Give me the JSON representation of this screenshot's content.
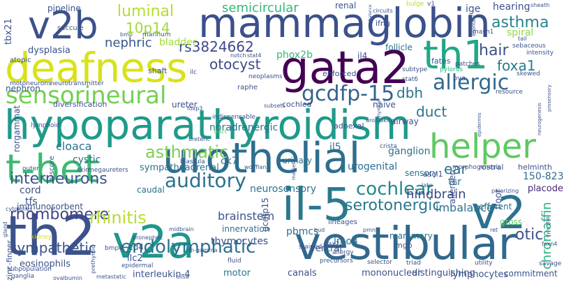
{
  "words": [
    {
      "text": "hypoparathyroidism",
      "color": "#1e9a8a"
    },
    {
      "text": "mammaglobin",
      "color": "#3b518b"
    },
    {
      "text": "deafness",
      "color": "#d8e219"
    },
    {
      "text": "urothelial",
      "color": "#2e6e8e"
    },
    {
      "text": "gata2",
      "color": "#440154"
    },
    {
      "text": "vestibular",
      "color": "#31688e"
    },
    {
      "text": "t-bet",
      "color": "#3cbb75"
    },
    {
      "text": "th2",
      "color": "#3b528b"
    },
    {
      "text": "v2a",
      "color": "#1f968b"
    },
    {
      "text": "v2b",
      "color": "#3b518b"
    },
    {
      "text": "th1",
      "color": "#22a884"
    },
    {
      "text": "il-5",
      "color": "#2a788e"
    },
    {
      "text": "v2",
      "color": "#2c728e"
    },
    {
      "text": "helper",
      "color": "#5ec962"
    },
    {
      "text": "sensorineural",
      "color": "#73d055"
    },
    {
      "text": "gcdfp-15",
      "color": "#33638d"
    },
    {
      "text": "allergic",
      "color": "#31688e"
    },
    {
      "text": "auditory",
      "color": "#2c728e"
    },
    {
      "text": "endolymphatic",
      "color": "#2d708e"
    },
    {
      "text": "cochlear",
      "color": "#24868e"
    },
    {
      "text": "serotonergic",
      "color": "#2a788e"
    },
    {
      "text": "asthmatic",
      "color": "#7ad151"
    },
    {
      "text": "interneurons",
      "color": "#3b528b"
    },
    {
      "text": "rhombomere",
      "color": "#414487"
    },
    {
      "text": "rhinitis",
      "color": "#b5de2b"
    },
    {
      "text": "sympathetic",
      "color": "#3b528b"
    },
    {
      "text": "luminal",
      "color": "#b5de2b"
    },
    {
      "text": "10p14",
      "color": "#a0da39"
    },
    {
      "text": "semicircular",
      "color": "#35b779"
    },
    {
      "text": "rs3824662",
      "color": "#3e4989"
    },
    {
      "text": "nephric",
      "color": "#39568c"
    },
    {
      "text": "otocyst",
      "color": "#3e4a89"
    },
    {
      "text": "dbh",
      "color": "#2c728e"
    },
    {
      "text": "asthma",
      "color": "#25848e"
    },
    {
      "text": "hair",
      "color": "#3b528b"
    },
    {
      "text": "foxa1",
      "color": "#287d8e"
    },
    {
      "text": "duct",
      "color": "#2c728e"
    },
    {
      "text": "ear",
      "color": "#2c728e"
    },
    {
      "text": "otic",
      "color": "#3b528b"
    },
    {
      "text": "hindbrain",
      "color": "#3e4a89"
    },
    {
      "text": "thymocytes",
      "color": "#3b528b"
    },
    {
      "text": "brainstem",
      "color": "#3b528b"
    },
    {
      "text": "pbmcs",
      "color": "#2c728e"
    },
    {
      "text": "lmo4",
      "color": "#2c728e"
    },
    {
      "text": "chromaffin",
      "color": "#2ab07f"
    },
    {
      "text": "bladder",
      "color": "#a5db36"
    },
    {
      "text": "spiral",
      "color": "#8fd744"
    },
    {
      "text": "hearing",
      "color": "#3b528b"
    },
    {
      "text": "il13",
      "color": "#440154"
    },
    {
      "text": "ige",
      "color": "#3b528b"
    },
    {
      "text": "tbx21",
      "color": "#3b528b"
    },
    {
      "text": "dysplasia",
      "color": "#3b528b"
    },
    {
      "text": "phox2b",
      "color": "#35b779"
    },
    {
      "text": "follicle",
      "color": "#2c728e"
    },
    {
      "text": "cochlea",
      "color": "#3b528b"
    },
    {
      "text": "naive",
      "color": "#3b528b"
    },
    {
      "text": "cloaca",
      "color": "#2c728e"
    },
    {
      "text": "noradrenergic",
      "color": "#2c728e"
    },
    {
      "text": "urogenital",
      "color": "#2e6e8e"
    },
    {
      "text": "il5",
      "color": "#2c728e"
    },
    {
      "text": "ganglion",
      "color": "#2c728e"
    },
    {
      "text": "sensory",
      "color": "#2c728e"
    },
    {
      "text": "tcr",
      "color": "#2c728e"
    },
    {
      "text": "150-823",
      "color": "#31688e"
    },
    {
      "text": "pet1",
      "color": "#2c728e"
    },
    {
      "text": "placode",
      "color": "#482878"
    },
    {
      "text": "imbalance",
      "color": "#2c728e"
    },
    {
      "text": "efferent",
      "color": "#2c728e"
    },
    {
      "text": "cystic",
      "color": "#2c728e"
    },
    {
      "text": "caudal",
      "color": "#2c728e"
    },
    {
      "text": "ck7",
      "color": "#2c728e"
    },
    {
      "text": "urinary",
      "color": "#2c728e"
    },
    {
      "text": "cord",
      "color": "#3b528b"
    },
    {
      "text": "tfs",
      "color": "#3b528b"
    },
    {
      "text": "immunosorbent",
      "color": "#3b528b"
    },
    {
      "text": "sympathoadrenal",
      "color": "#2c728e"
    },
    {
      "text": "neurosensory",
      "color": "#2c728e"
    },
    {
      "text": "innervation",
      "color": "#2c728e"
    },
    {
      "text": "mammary",
      "color": "#2c728e"
    },
    {
      "text": "mgb",
      "color": "#3b528b"
    },
    {
      "text": "ventral",
      "color": "#3b528b"
    },
    {
      "text": "ilc2",
      "color": "#3b528b"
    },
    {
      "text": "cd4",
      "color": "#3b528b"
    },
    {
      "text": "zinc-finger",
      "color": "#3b528b"
    },
    {
      "text": "eosinophils",
      "color": "#3b528b"
    },
    {
      "text": "interleukin-4",
      "color": "#3b528b"
    },
    {
      "text": "motor",
      "color": "#2c728e"
    },
    {
      "text": "canals",
      "color": "#3b528b"
    },
    {
      "text": "mononuclear",
      "color": "#3b528b"
    },
    {
      "text": "distinguishing",
      "color": "#3b528b"
    },
    {
      "text": "lymphocytes",
      "color": "#3b528b"
    },
    {
      "text": "commitment",
      "color": "#3b528b"
    },
    {
      "text": "pipeline",
      "color": "#3b528b"
    },
    {
      "text": "renal",
      "color": "#3b528b"
    },
    {
      "text": "ifng",
      "color": "#3b528b"
    },
    {
      "text": "il4",
      "color": "#3b528b"
    },
    {
      "text": "fates",
      "color": "#3b528b"
    },
    {
      "text": "nephron",
      "color": "#3b528b"
    },
    {
      "text": "ureter",
      "color": "#3b528b"
    },
    {
      "text": "airway",
      "color": "#3b528b"
    },
    {
      "text": "gcdfp15",
      "color": "#3b528b"
    },
    {
      "text": "floor",
      "color": "#3b528b"
    },
    {
      "text": "gross",
      "color": "#5ec962"
    },
    {
      "text": "allergen",
      "color": "#3b528b"
    },
    {
      "text": "rostral",
      "color": "#3b528b"
    },
    {
      "text": "helminth",
      "color": "#3b528b"
    },
    {
      "text": "ascl1",
      "color": "#3b528b"
    },
    {
      "text": "lineages",
      "color": "#3b528b"
    },
    {
      "text": "adnexal",
      "color": "#3b528b"
    },
    {
      "text": "diversification",
      "color": "#3b528b"
    },
    {
      "text": "indispensable",
      "color": "#3b528b"
    },
    {
      "text": "lymphoid",
      "color": "#3b528b"
    },
    {
      "text": "rorgammat",
      "color": "#3b528b"
    },
    {
      "text": "h-score",
      "color": "#3b528b"
    },
    {
      "text": "skin",
      "color": "#3b528b"
    },
    {
      "text": "megaureters",
      "color": "#3b528b"
    },
    {
      "text": "crista",
      "color": "#3b528b"
    },
    {
      "text": "blastula",
      "color": "#3b528b"
    },
    {
      "text": "morphogenesis",
      "color": "#3b528b"
    },
    {
      "text": "shaft",
      "color": "#3b528b"
    },
    {
      "text": "atopic",
      "color": "#3b528b"
    },
    {
      "text": "saccule",
      "color": "#3b528b"
    },
    {
      "text": "marinum",
      "color": "#3b528b"
    },
    {
      "text": "enforced",
      "color": "#3b528b"
    },
    {
      "text": "mash1",
      "color": "#3b528b"
    },
    {
      "text": "ova",
      "color": "#3b528b"
    },
    {
      "text": "patches",
      "color": "#3b528b"
    },
    {
      "text": "sebaceous",
      "color": "#3b528b"
    },
    {
      "text": "intensity",
      "color": "#3b528b"
    },
    {
      "text": "resource",
      "color": "#3b528b"
    },
    {
      "text": "skewed",
      "color": "#3b528b"
    },
    {
      "text": "neoplasms",
      "color": "#3b528b"
    },
    {
      "text": "raphe",
      "color": "#3b528b"
    },
    {
      "text": "stat6",
      "color": "#3b528b"
    },
    {
      "text": "subtype",
      "color": "#3b528b"
    },
    {
      "text": "pylorus",
      "color": "#2ab07f"
    },
    {
      "text": "motoneurons",
      "color": "#3b528b"
    },
    {
      "text": "neurotransmitter",
      "color": "#3b528b"
    },
    {
      "text": "ilc",
      "color": "#3b528b"
    },
    {
      "text": "notch",
      "color": "#3b528b"
    },
    {
      "text": "stat4",
      "color": "#3b528b"
    },
    {
      "text": "bmp",
      "color": "#3b528b"
    },
    {
      "text": "bulge",
      "color": "#b5de2b"
    },
    {
      "text": "v1",
      "color": "#3b528b"
    },
    {
      "text": "circuits",
      "color": "#3b528b"
    },
    {
      "text": "anomaly",
      "color": "#3b528b"
    },
    {
      "text": "balance",
      "color": "#3b528b"
    },
    {
      "text": "epidermis",
      "color": "#3b528b"
    },
    {
      "text": "neurogenesis",
      "color": "#3b528b"
    },
    {
      "text": "prosensory",
      "color": "#3b528b"
    },
    {
      "text": "outer",
      "color": "#3b528b"
    },
    {
      "text": "uroplakin",
      "color": "#3b528b"
    },
    {
      "text": "kidney",
      "color": "#d8e219"
    },
    {
      "text": "thymus",
      "color": "#3b528b"
    },
    {
      "text": "pronephric",
      "color": "#3b528b"
    },
    {
      "text": "midbrain",
      "color": "#3b528b"
    },
    {
      "text": "cytokines",
      "color": "#3b528b"
    },
    {
      "text": "subpopulation",
      "color": "#3b528b"
    },
    {
      "text": "ganglia",
      "color": "#3b528b"
    },
    {
      "text": "gland",
      "color": "#3b528b"
    },
    {
      "text": "ovalbumin",
      "color": "#3b528b"
    },
    {
      "text": "metastatic",
      "color": "#3b528b"
    },
    {
      "text": "elisa",
      "color": "#3b528b"
    },
    {
      "text": "prethymic",
      "color": "#3b528b"
    },
    {
      "text": "bmp4",
      "color": "#3b528b"
    },
    {
      "text": "ifn-gamma",
      "color": "#3b528b"
    },
    {
      "text": "epidermal",
      "color": "#3b528b"
    },
    {
      "text": "fluid",
      "color": "#3b528b"
    },
    {
      "text": "precursors",
      "color": "#3b528b"
    },
    {
      "text": "selector",
      "color": "#3b528b"
    },
    {
      "text": "triad",
      "color": "#3b528b"
    },
    {
      "text": "utility",
      "color": "#3b528b"
    },
    {
      "text": "savage",
      "color": "#3b528b"
    },
    {
      "text": "stained",
      "color": "#3b528b"
    },
    {
      "text": "allergy",
      "color": "#3b528b"
    },
    {
      "text": "pax2",
      "color": "#3b528b"
    },
    {
      "text": "bud",
      "color": "#3b528b"
    },
    {
      "text": "pmn",
      "color": "#3b528b"
    },
    {
      "text": "polarizing",
      "color": "#3b528b"
    },
    {
      "text": "foxn4",
      "color": "#3b528b"
    },
    {
      "text": "ret",
      "color": "#3b528b"
    },
    {
      "text": "syncytial",
      "color": "#3b528b"
    },
    {
      "text": "sheath",
      "color": "#3b528b"
    },
    {
      "text": "tall",
      "color": "#3b528b"
    },
    {
      "text": "subsets",
      "color": "#3b528b"
    },
    {
      "text": "foxp3",
      "color": "#3b528b"
    },
    {
      "text": "marliest",
      "color": "#3b528b"
    },
    {
      "text": "tract",
      "color": "#5ec962"
    },
    {
      "text": "ureteric",
      "color": "#3b528b"
    },
    {
      "text": "wolffian",
      "color": "#3b528b"
    },
    {
      "text": "late",
      "color": "#3b528b"
    },
    {
      "text": "rudiment",
      "color": "#3b528b"
    }
  ]
}
